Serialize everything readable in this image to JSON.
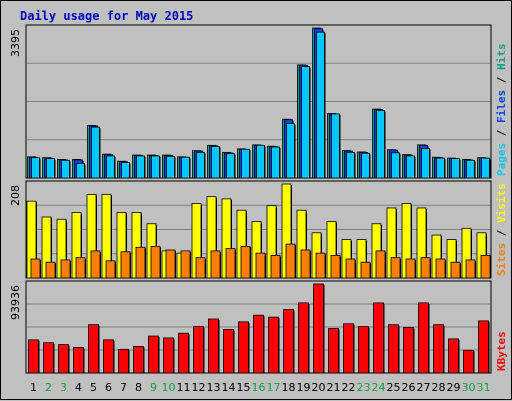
{
  "chart_data": {
    "type": "bar",
    "title": "Daily usage for May 2015",
    "days": [
      "1",
      "2",
      "3",
      "4",
      "5",
      "6",
      "7",
      "8",
      "9",
      "10",
      "11",
      "12",
      "13",
      "14",
      "15",
      "16",
      "17",
      "18",
      "19",
      "20",
      "21",
      "22",
      "23",
      "24",
      "25",
      "26",
      "27",
      "28",
      "29",
      "30",
      "31"
    ],
    "weekend_days": [
      "2",
      "3",
      "9",
      "10",
      "16",
      "17",
      "23",
      "24",
      "30",
      "31"
    ],
    "panels": [
      {
        "id": "hits",
        "max_label": "3395",
        "ymax": 3395,
        "legend": [
          "Pages",
          "Files",
          "Hits"
        ],
        "legend_colors": [
          "#00c8ff",
          "#0040ff",
          "#00a080"
        ],
        "series": [
          {
            "name": "Hits",
            "color": "#00a080",
            "values": [
              480,
              460,
              420,
              420,
              1190,
              540,
              380,
              520,
              520,
              520,
              480,
              620,
              740,
              580,
              660,
              750,
              720,
              1330,
              2560,
              3395,
              1460,
              620,
              590,
              1560,
              640,
              530,
              750,
              470,
              450,
              420,
              460
            ]
          },
          {
            "name": "Files",
            "color": "#0040ff",
            "values": [
              470,
              450,
              410,
              410,
              1180,
              530,
              370,
              510,
              510,
              510,
              470,
              610,
              730,
              570,
              650,
              740,
              710,
              1320,
              2550,
              3380,
              1450,
              610,
              580,
              1550,
              630,
              520,
              740,
              460,
              440,
              410,
              450
            ]
          },
          {
            "name": "Pages",
            "color": "#00c8ff",
            "values": [
              460,
              440,
              400,
              330,
              1150,
              500,
              350,
              500,
              500,
              490,
              470,
              580,
              710,
              550,
              650,
              740,
              700,
              1230,
              2520,
              3300,
              1450,
              580,
              560,
              1530,
              570,
              500,
              670,
              450,
              440,
              400,
              450
            ]
          }
        ]
      },
      {
        "id": "visits",
        "max_label": "208",
        "ymax": 208,
        "legend": [
          "Sites",
          "Visits"
        ],
        "legend_colors": [
          "#ff8000",
          "#ffff00"
        ],
        "series": [
          {
            "name": "Visits",
            "color": "#ffff00",
            "values": [
              170,
              135,
              130,
              145,
              185,
              185,
              145,
              145,
              120,
              60,
              55,
              165,
              180,
              175,
              150,
              125,
              160,
              208,
              150,
              100,
              125,
              85,
              85,
              120,
              155,
              165,
              155,
              95,
              85,
              110,
              100
            ]
          },
          {
            "name": "Sites",
            "color": "#ff8000",
            "values": [
              42,
              35,
              40,
              45,
              60,
              38,
              58,
              68,
              70,
              62,
              60,
              45,
              60,
              65,
              70,
              55,
              50,
              75,
              62,
              55,
              50,
              42,
              35,
              60,
              45,
              42,
              45,
              42,
              35,
              40,
              50
            ]
          }
        ]
      },
      {
        "id": "kbytes",
        "max_label": "93936",
        "ymax": 93936,
        "legend": [
          "KBytes"
        ],
        "legend_colors": [
          "#ff0000"
        ],
        "series": [
          {
            "name": "KBytes",
            "color": "#ff0000",
            "values": [
              35000,
              32000,
              30000,
              27000,
              51000,
              35000,
              25000,
              28000,
              39000,
              37000,
              42000,
              49000,
              57000,
              46000,
              54000,
              61000,
              59000,
              67000,
              74000,
              93936,
              47000,
              52000,
              49000,
              74000,
              51000,
              48000,
              74000,
              51000,
              36000,
              24000,
              55000
            ]
          }
        ]
      }
    ]
  },
  "colors": {
    "plot_bg": "#c0c0c0",
    "weekday_label": "#000000",
    "weekend_label": "#00a040",
    "gridline": "#808080"
  }
}
